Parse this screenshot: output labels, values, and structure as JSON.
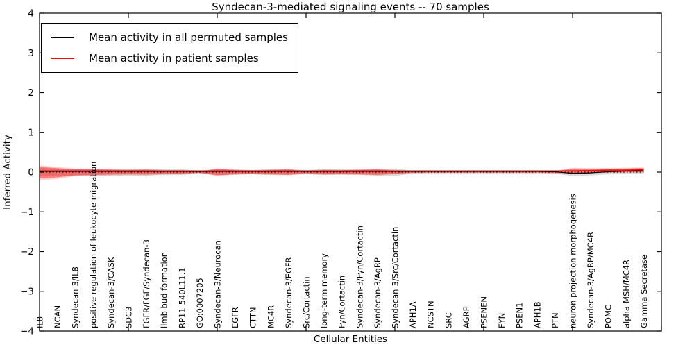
{
  "chart_data": {
    "type": "line",
    "title": "Syndecan-3-mediated signaling events -- 70 samples",
    "xlabel": "Cellular Entities",
    "ylabel": "Inferred Activity",
    "ylim": [
      -4,
      4
    ],
    "ytick_labels": [
      "4",
      "3",
      "2",
      "1",
      "0",
      "−1",
      "−2",
      "−3",
      "−4"
    ],
    "grid": false,
    "legend_position": "upper-left",
    "categories": [
      "IL8",
      "NCAN",
      "Syndecan-3/IL8",
      "positive regulation of leukocyte migration",
      "Syndecan-3/CASK",
      "SDC3",
      "FGFR/FGF/Syndecan-3",
      "limb bud formation",
      "RP11-540L11.1",
      "GO:0007205",
      "Syndecan-3/Neurocan",
      "EGFR",
      "CTTN",
      "MC4R",
      "Syndecan-3/EGFR",
      "Src/Cortactin",
      "long-term memory",
      "Fyn/Cortactin",
      "Syndecan-3/Fyn/Cortactin",
      "Syndecan-3/AgRP",
      "Syndecan-3/Src/Cortactin",
      "APH1A",
      "NCSTN",
      "SRC",
      "AGRP",
      "PSENEN",
      "FYN",
      "PSEN1",
      "APH1B",
      "PTN",
      "neuron projection morphogenesis",
      "Syndecan-3/AgRP/MC4R",
      "POMC",
      "alpha-MSH/MC4R",
      "Gamma Secretase"
    ],
    "series": [
      {
        "name": "Mean activity in all permuted samples",
        "color": "#000000",
        "values": [
          0.02,
          0.02,
          0.02,
          0.02,
          0.02,
          0.02,
          0.02,
          0.02,
          0.02,
          0.02,
          0.02,
          0.02,
          0.02,
          0.02,
          0.02,
          0.02,
          0.02,
          0.02,
          0.02,
          0.02,
          0.02,
          0.02,
          0.02,
          0.02,
          0.02,
          0.02,
          0.02,
          0.02,
          0.02,
          0.01,
          -0.03,
          -0.02,
          0.01,
          0.03,
          0.05
        ]
      },
      {
        "name": "Mean activity in patient samples",
        "color": "#ff0000",
        "values": [
          0.03,
          0.03,
          0.03,
          0.03,
          0.03,
          0.03,
          0.03,
          0.03,
          0.03,
          0.03,
          0.03,
          0.03,
          0.03,
          0.03,
          0.03,
          0.03,
          0.03,
          0.03,
          0.03,
          0.03,
          0.03,
          0.03,
          0.03,
          0.03,
          0.03,
          0.03,
          0.03,
          0.03,
          0.03,
          0.03,
          0.03,
          0.04,
          0.05,
          0.05,
          0.06
        ]
      }
    ],
    "zero_line": {
      "y": 0,
      "color": "#000000",
      "style": "dotted"
    },
    "bands": [
      {
        "name": "permuted-spread-band",
        "color": "rgba(0,0,0,0.14)",
        "upper": [
          0.1,
          0.09,
          0.085,
          0.085,
          0.085,
          0.09,
          0.085,
          0.075,
          0.075,
          0.035,
          0.07,
          0.065,
          0.055,
          0.075,
          0.07,
          0.055,
          0.075,
          0.065,
          0.065,
          0.085,
          0.09,
          0.04,
          0.03,
          0.03,
          0.03,
          0.03,
          0.03,
          0.03,
          0.03,
          0.04,
          0.06,
          0.05,
          0.055,
          0.06,
          0.065
        ],
        "lower": [
          -0.1,
          -0.09,
          -0.085,
          -0.085,
          -0.085,
          -0.09,
          -0.085,
          -0.075,
          -0.075,
          -0.035,
          -0.07,
          -0.065,
          -0.055,
          -0.075,
          -0.07,
          -0.055,
          -0.075,
          -0.065,
          -0.065,
          -0.085,
          -0.1,
          -0.04,
          -0.03,
          -0.03,
          -0.03,
          -0.03,
          -0.03,
          -0.03,
          -0.03,
          -0.04,
          -0.1,
          -0.08,
          -0.06,
          -0.05,
          -0.03
        ]
      },
      {
        "name": "patient-outer-band",
        "color": "rgba(255,0,0,0.18)",
        "upper": [
          0.17,
          0.13,
          0.09,
          0.09,
          0.08,
          0.07,
          0.08,
          0.055,
          0.055,
          0.025,
          0.095,
          0.065,
          0.05,
          0.065,
          0.08,
          0.04,
          0.065,
          0.06,
          0.07,
          0.08,
          0.055,
          0.025,
          0.02,
          0.02,
          0.02,
          0.02,
          0.02,
          0.02,
          0.02,
          0.03,
          0.11,
          0.1,
          0.1,
          0.11,
          0.12
        ],
        "lower": [
          -0.21,
          -0.17,
          -0.1,
          -0.09,
          -0.08,
          -0.07,
          -0.08,
          -0.055,
          -0.055,
          -0.025,
          -0.095,
          -0.065,
          -0.05,
          -0.065,
          -0.08,
          -0.04,
          -0.065,
          -0.06,
          -0.07,
          -0.08,
          -0.055,
          -0.025,
          -0.02,
          -0.02,
          -0.02,
          -0.02,
          -0.02,
          -0.02,
          -0.02,
          -0.03,
          -0.04,
          -0.02,
          -0.02,
          -0.01,
          -0.01
        ]
      },
      {
        "name": "patient-inner-band",
        "color": "rgba(255,0,0,0.40)",
        "upper": [
          0.13,
          0.1,
          0.07,
          0.07,
          0.06,
          0.05,
          0.06,
          0.04,
          0.04,
          0.015,
          0.08,
          0.05,
          0.035,
          0.05,
          0.065,
          0.025,
          0.05,
          0.045,
          0.055,
          0.065,
          0.04,
          0.015,
          0.012,
          0.012,
          0.012,
          0.012,
          0.012,
          0.012,
          0.012,
          0.02,
          0.09,
          0.08,
          0.08,
          0.09,
          0.1
        ],
        "lower": [
          -0.16,
          -0.13,
          -0.08,
          -0.07,
          -0.06,
          -0.05,
          -0.06,
          -0.04,
          -0.04,
          -0.015,
          -0.08,
          -0.05,
          -0.035,
          -0.05,
          -0.065,
          -0.025,
          -0.05,
          -0.045,
          -0.055,
          -0.065,
          -0.04,
          -0.015,
          -0.012,
          -0.012,
          -0.012,
          -0.012,
          -0.012,
          -0.012,
          -0.012,
          -0.02,
          -0.02,
          -0.01,
          -0.005,
          0.0,
          0.0
        ]
      }
    ]
  }
}
